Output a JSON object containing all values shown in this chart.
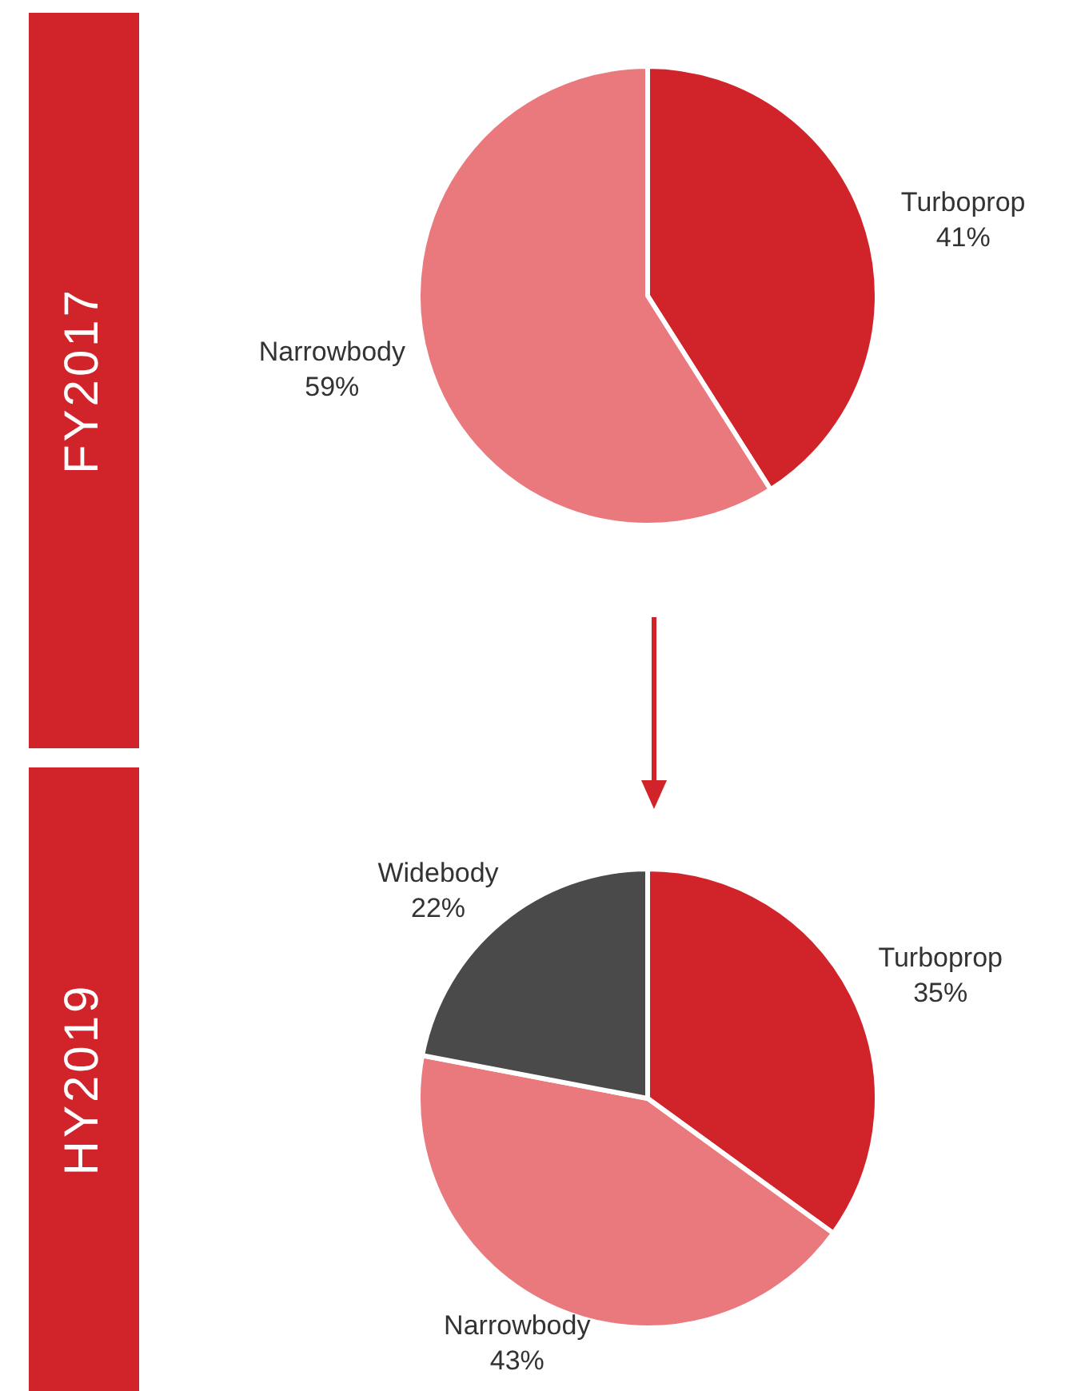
{
  "chart_data": [
    {
      "type": "pie",
      "title": "FY2017",
      "categories": [
        "Turboprop",
        "Narrowbody"
      ],
      "values": [
        41,
        59
      ],
      "colors": [
        "#d0232a",
        "#e9797d"
      ],
      "value_labels": [
        "41%",
        "59%"
      ]
    },
    {
      "type": "pie",
      "title": "HY2019",
      "categories": [
        "Turboprop",
        "Narrowbody",
        "Widebody"
      ],
      "values": [
        35,
        43,
        22
      ],
      "colors": [
        "#d0232a",
        "#e9797d",
        "#4a4a4a"
      ],
      "value_labels": [
        "35%",
        "43%",
        "22%"
      ]
    }
  ]
}
